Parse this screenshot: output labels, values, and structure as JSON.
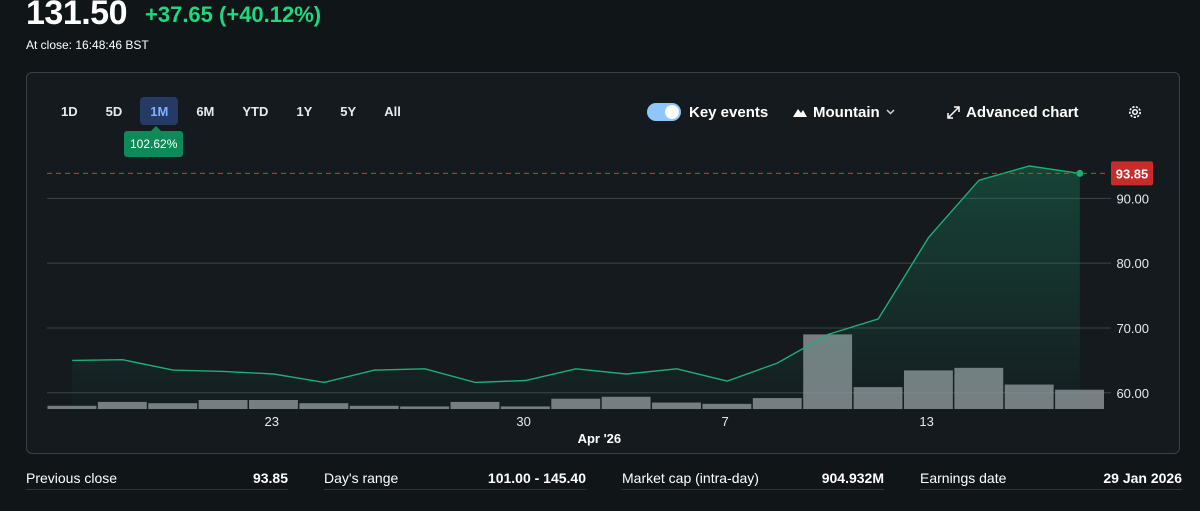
{
  "quote": {
    "price": "131.50",
    "change": "+37.65 (+40.12%)",
    "at_close": "At close: 16:48:46 BST"
  },
  "range_tabs": [
    "1D",
    "5D",
    "1M",
    "6M",
    "YTD",
    "1Y",
    "5Y",
    "All"
  ],
  "active_range": "1M",
  "range_badge": "102.62%",
  "toolbar": {
    "key_events_label": "Key events",
    "key_events_on": true,
    "chart_type_label": "Mountain",
    "advanced_chart_label": "Advanced chart"
  },
  "icons": {
    "mountain": "mountain-icon",
    "chevron": "chevron-down-icon",
    "expand": "expand-icon",
    "settings": "gear-icon"
  },
  "colors": {
    "line": "#1fae78",
    "up": "#1fd77f",
    "ref_line": "#d33b3b",
    "ref_badge": "#c92a2a",
    "volume": "#8a8f94"
  },
  "chart_data": {
    "type": "area",
    "x_tick_labels": [
      "23",
      "30",
      "7",
      "13"
    ],
    "x_month_label": "Apr '26",
    "y_ticks": [
      "60.00",
      "70.00",
      "80.00",
      "90.00"
    ],
    "y_tick_values": [
      60,
      70,
      80,
      90
    ],
    "ylim": [
      57.5,
      97
    ],
    "reference_line": {
      "value": 93.85,
      "label": "93.85"
    },
    "price_values": [
      65.0,
      65.1,
      63.5,
      63.3,
      62.9,
      61.6,
      63.5,
      63.7,
      61.6,
      61.9,
      63.7,
      62.9,
      63.7,
      61.8,
      64.6,
      69.0,
      71.4,
      84.0,
      92.8,
      95.0,
      93.85
    ],
    "volume_values": [
      0.025,
      0.055,
      0.045,
      0.07,
      0.07,
      0.045,
      0.025,
      0.02,
      0.055,
      0.02,
      0.08,
      0.095,
      0.05,
      0.04,
      0.085,
      0.58,
      0.17,
      0.3,
      0.32,
      0.19,
      0.15
    ]
  },
  "stats": [
    {
      "label": "Previous close",
      "value": "93.85"
    },
    {
      "label": "Day's range",
      "value": "101.00 - 145.40"
    },
    {
      "label": "Market cap (intra-day)",
      "value": "904.932M"
    },
    {
      "label": "Earnings date",
      "value": "29 Jan 2026"
    }
  ]
}
